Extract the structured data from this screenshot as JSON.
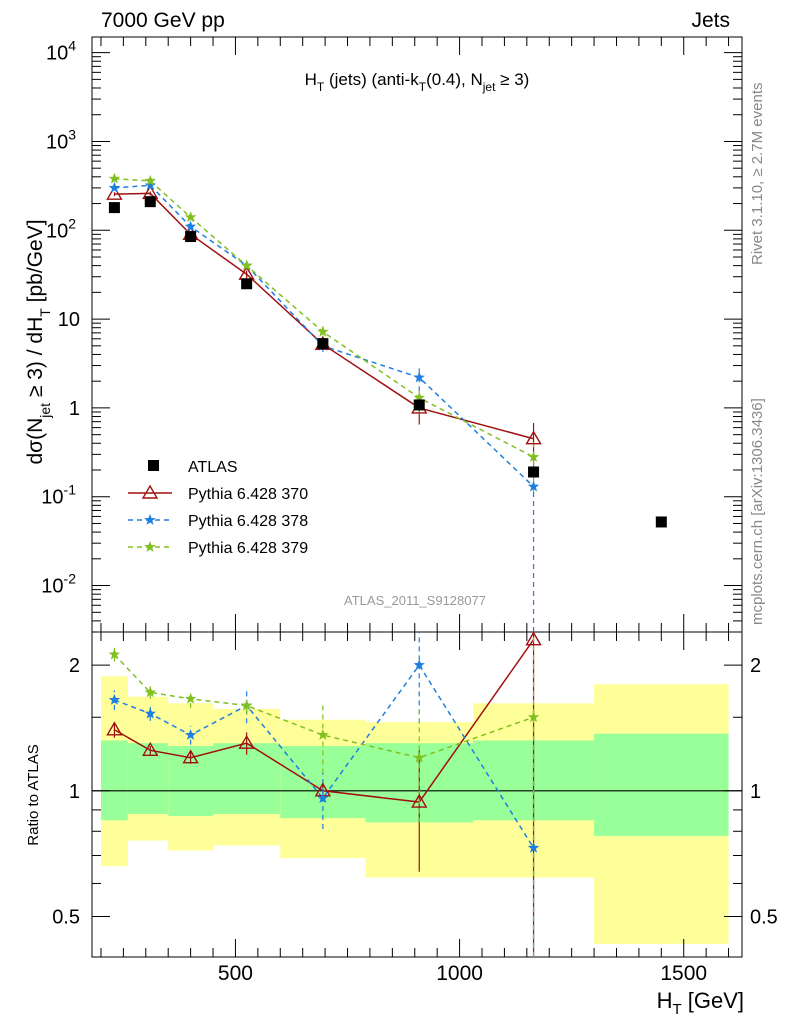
{
  "header": {
    "left": "7000 GeV pp",
    "right": "Jets"
  },
  "plot_title": {
    "main": "H",
    "sub_T": "T",
    "rest1": " (jets) (anti-k",
    "sub_T2": "T",
    "rest2": "(0.4), N",
    "sub_jet": "jet",
    "rest3": " ≥ 3)"
  },
  "ylabel_main": {
    "p1": "dσ(N",
    "sub_jet": "jet",
    "p2": " ≥ 3) / dH",
    "sub_T": "T",
    "p3": " [pb/GeV]"
  },
  "xlabel": {
    "p1": "H",
    "sub": "T",
    "p2": " [GeV]"
  },
  "ylabel_ratio": "Ratio to ATLAS",
  "side_text": {
    "rivet": "Rivet 3.1.10, ≥ 2.7M events",
    "mcplots": "mcplots.cern.ch [arXiv:1306.3436]"
  },
  "analysis_id": "ATLAS_2011_S9128077",
  "legend": [
    {
      "label": "ATLAS",
      "color": "#000000"
    },
    {
      "label": "Pythia 6.428 370",
      "color": "#a01010"
    },
    {
      "label": "Pythia 6.428 378",
      "color": "#1f7fe0"
    },
    {
      "label": "Pythia 6.428 379",
      "color": "#80c020"
    }
  ],
  "ticks": {
    "main_y": [
      "10^-2",
      "10^-1",
      "1",
      "10",
      "10^2",
      "10^3",
      "10^4"
    ],
    "ratio_y": [
      "0.5",
      "1",
      "2"
    ],
    "x": [
      "500",
      "1000",
      "1500"
    ]
  },
  "chart_data": {
    "type": "scatter",
    "main": {
      "x_range": [
        180,
        1630
      ],
      "y_range": [
        0.003,
        15000
      ],
      "y_scale": "log",
      "data": {
        "name": "ATLAS",
        "x": [
          230,
          310,
          400,
          525,
          695,
          910,
          1165,
          1450
        ],
        "y": [
          180,
          210,
          85,
          25,
          5.3,
          1.08,
          0.19,
          0.052
        ]
      },
      "series": [
        {
          "name": "Pythia 6.428 370",
          "x": [
            230,
            310,
            400,
            525,
            695,
            910,
            1165
          ],
          "y": [
            255,
            260,
            90,
            32,
            5.2,
            1.0,
            0.45
          ],
          "yerr": [
            0.05,
            0.05,
            0.05,
            0.1,
            0.1,
            0.35,
            0.5
          ]
        },
        {
          "name": "Pythia 6.428 378",
          "x": [
            230,
            310,
            400,
            525,
            695,
            910,
            1165
          ],
          "y": [
            300,
            320,
            110,
            40,
            5.0,
            2.2,
            0.13
          ],
          "yerr": [
            0.05,
            0.05,
            0.05,
            0.1,
            0.15,
            0.3,
            1.0
          ]
        },
        {
          "name": "Pythia 6.428 379",
          "x": [
            230,
            310,
            400,
            525,
            695,
            910,
            1165
          ],
          "y": [
            380,
            360,
            140,
            40,
            7.2,
            1.3,
            0.28
          ],
          "yerr": [
            0.05,
            0.05,
            0.05,
            0.1,
            0.2,
            0.35,
            0.6
          ]
        }
      ]
    },
    "ratio": {
      "x_range": [
        180,
        1630
      ],
      "y_range": [
        0.4,
        2.4
      ],
      "y_scale": "log",
      "bands": [
        {
          "x0": 200,
          "x1": 260,
          "inner": [
            0.85,
            1.32
          ],
          "outer": [
            0.66,
            1.88
          ]
        },
        {
          "x0": 260,
          "x1": 350,
          "inner": [
            0.88,
            1.3
          ],
          "outer": [
            0.76,
            1.68
          ]
        },
        {
          "x0": 350,
          "x1": 450,
          "inner": [
            0.87,
            1.28
          ],
          "outer": [
            0.72,
            1.62
          ]
        },
        {
          "x0": 450,
          "x1": 600,
          "inner": [
            0.88,
            1.3
          ],
          "outer": [
            0.74,
            1.57
          ]
        },
        {
          "x0": 600,
          "x1": 790,
          "inner": [
            0.86,
            1.28
          ],
          "outer": [
            0.69,
            1.48
          ]
        },
        {
          "x0": 790,
          "x1": 1030,
          "inner": [
            0.84,
            1.3
          ],
          "outer": [
            0.62,
            1.46
          ]
        },
        {
          "x0": 1030,
          "x1": 1300,
          "inner": [
            0.85,
            1.32
          ],
          "outer": [
            0.62,
            1.62
          ]
        },
        {
          "x0": 1300,
          "x1": 1600,
          "inner": [
            0.78,
            1.37
          ],
          "outer": [
            0.43,
            1.8
          ]
        }
      ],
      "series": [
        {
          "name": "Pythia 6.428 370",
          "x": [
            230,
            310,
            400,
            525,
            695,
            910,
            1165
          ],
          "y": [
            1.4,
            1.25,
            1.2,
            1.3,
            1.0,
            0.94,
            2.3
          ],
          "err": [
            [
              1.34,
              1.46
            ],
            [
              1.22,
              1.28
            ],
            [
              1.16,
              1.24
            ],
            [
              1.22,
              1.38
            ],
            [
              0.95,
              1.05
            ],
            [
              0.64,
              1.25
            ],
            [
              0.4,
              2.4
            ]
          ]
        },
        {
          "name": "Pythia 6.428 378",
          "x": [
            230,
            310,
            400,
            525,
            695,
            910,
            1165
          ],
          "y": [
            1.65,
            1.53,
            1.36,
            1.6,
            0.96,
            2.0,
            0.73
          ],
          "err": [
            [
              1.56,
              1.74
            ],
            [
              1.47,
              1.59
            ],
            [
              1.29,
              1.43
            ],
            [
              1.45,
              1.75
            ],
            [
              0.81,
              1.11
            ],
            [
              1.45,
              2.4
            ],
            [
              0.4,
              1.4
            ]
          ]
        },
        {
          "name": "Pythia 6.428 379",
          "x": [
            230,
            310,
            400,
            525,
            695,
            910,
            1165
          ],
          "y": [
            2.12,
            1.72,
            1.66,
            1.6,
            1.36,
            1.2,
            1.5
          ],
          "err": [
            [
              2.04,
              2.2
            ],
            [
              1.66,
              1.78
            ],
            [
              1.58,
              1.74
            ],
            [
              1.53,
              1.67
            ],
            [
              1.1,
              1.6
            ],
            [
              0.84,
              1.56
            ],
            [
              0.4,
              2.4
            ]
          ]
        }
      ]
    }
  }
}
